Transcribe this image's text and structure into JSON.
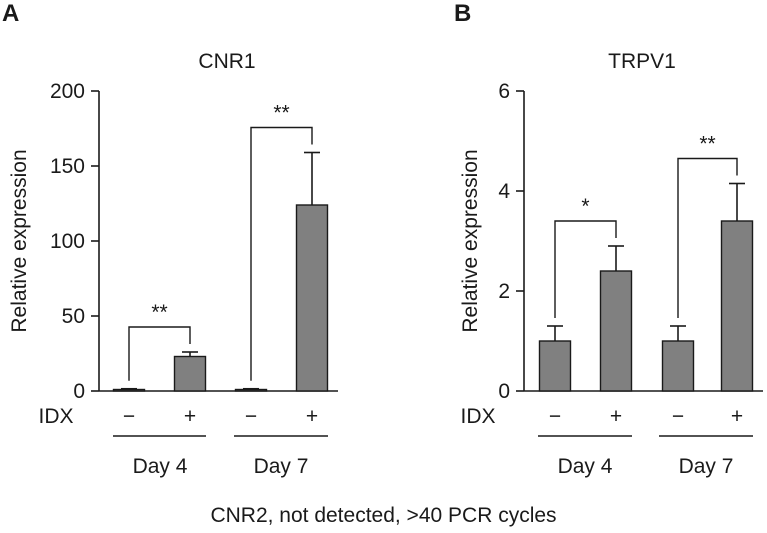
{
  "panel_labels": [
    "A",
    "B"
  ],
  "footnote": "CNR2, not detected, >40 PCR cycles",
  "colors": {
    "bar_fill": "#808080",
    "axis": "#1a1a1a"
  },
  "chart_data": [
    {
      "type": "bar",
      "title": "CNR1",
      "ylabel": "Relative expression",
      "xlabel": "",
      "ylim": [
        0,
        200
      ],
      "yticks": [
        0,
        50,
        100,
        150,
        200
      ],
      "treatment_label": "IDX",
      "treatment_values": [
        "−",
        "+",
        "−",
        "+"
      ],
      "groups": [
        "Day 4",
        "Day 7"
      ],
      "categories": [
        "Day 4 IDX −",
        "Day 4 IDX +",
        "Day 7 IDX −",
        "Day 7 IDX +"
      ],
      "values": [
        1,
        23,
        1,
        124
      ],
      "errors": [
        0.5,
        3,
        0.5,
        35
      ],
      "significance": [
        {
          "from": 0,
          "to": 1,
          "label": "**"
        },
        {
          "from": 2,
          "to": 3,
          "label": "**"
        }
      ]
    },
    {
      "type": "bar",
      "title": "TRPV1",
      "ylabel": "Relative expression",
      "xlabel": "",
      "ylim": [
        0,
        6
      ],
      "yticks": [
        0,
        2,
        4,
        6
      ],
      "treatment_label": "IDX",
      "treatment_values": [
        "−",
        "+",
        "−",
        "+"
      ],
      "groups": [
        "Day 4",
        "Day 7"
      ],
      "categories": [
        "Day 4 IDX −",
        "Day 4 IDX +",
        "Day 7 IDX −",
        "Day 7 IDX +"
      ],
      "values": [
        1.0,
        2.4,
        1.0,
        3.4
      ],
      "errors": [
        0.3,
        0.5,
        0.3,
        0.75
      ],
      "significance": [
        {
          "from": 0,
          "to": 1,
          "label": "*"
        },
        {
          "from": 2,
          "to": 3,
          "label": "**"
        }
      ]
    }
  ]
}
